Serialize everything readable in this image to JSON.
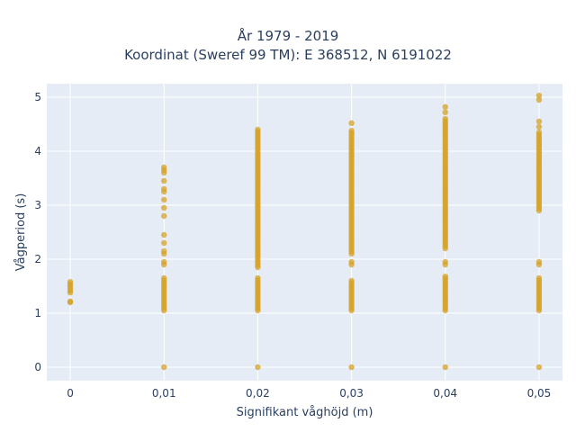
{
  "chart_data": {
    "type": "scatter",
    "title": [
      "År 1979 - 2019",
      "Koordinat (Sweref 99 TM): E 368512, N 6191022"
    ],
    "xlabel": "Signifikant våghöjd (m)",
    "ylabel": "Vågperiod (s)",
    "x_ticks": [
      "0",
      "0,01",
      "0,02",
      "0,03",
      "0,04",
      "0,05"
    ],
    "y_ticks": [
      "0",
      "1",
      "2",
      "3",
      "4",
      "5"
    ],
    "xlim": [
      -0.0025,
      0.0525
    ],
    "ylim": [
      -0.25,
      5.25
    ],
    "grid": true,
    "marker_color": "#d4a126",
    "background_color": "#e5ecf6",
    "series": [
      {
        "points": [
          {
            "x": 0,
            "y_range": [
              1.2,
              1.22
            ]
          },
          {
            "x": 0,
            "y_range": [
              1.38,
              1.58
            ]
          },
          {
            "x": 0.01,
            "y": 0
          },
          {
            "x": 0.01,
            "y_range": [
              1.05,
              1.65
            ]
          },
          {
            "x": 0.01,
            "y_range": [
              1.9,
              1.95
            ]
          },
          {
            "x": 0.01,
            "y_range": [
              2.1,
              2.15
            ]
          },
          {
            "x": 0.01,
            "values": [
              2.3,
              2.45,
              2.8,
              2.95,
              3.1,
              3.25,
              3.3,
              3.45,
              3.6,
              3.65,
              3.7
            ]
          },
          {
            "x": 0.02,
            "y": 0
          },
          {
            "x": 0.02,
            "y_range": [
              1.05,
              1.65
            ]
          },
          {
            "x": 0.02,
            "y_range": [
              1.85,
              4.4
            ]
          },
          {
            "x": 0.03,
            "y": 0
          },
          {
            "x": 0.03,
            "y_range": [
              1.05,
              1.6
            ]
          },
          {
            "x": 0.03,
            "y_range": [
              1.9,
              1.95
            ]
          },
          {
            "x": 0.03,
            "y_range": [
              2.1,
              4.38
            ]
          },
          {
            "x": 0.03,
            "values": [
              4.52
            ]
          },
          {
            "x": 0.04,
            "y": 0
          },
          {
            "x": 0.04,
            "y_range": [
              1.05,
              1.68
            ]
          },
          {
            "x": 0.04,
            "y_range": [
              1.9,
              1.95
            ]
          },
          {
            "x": 0.04,
            "y_range": [
              2.2,
              4.6
            ]
          },
          {
            "x": 0.04,
            "values": [
              4.72,
              4.82
            ]
          },
          {
            "x": 0.05,
            "y": 0
          },
          {
            "x": 0.05,
            "y_range": [
              1.05,
              1.65
            ]
          },
          {
            "x": 0.05,
            "y_range": [
              1.9,
              1.95
            ]
          },
          {
            "x": 0.05,
            "y_range": [
              2.9,
              4.35
            ]
          },
          {
            "x": 0.05,
            "values": [
              4.45,
              4.55,
              4.95,
              5.03
            ]
          }
        ]
      }
    ]
  }
}
